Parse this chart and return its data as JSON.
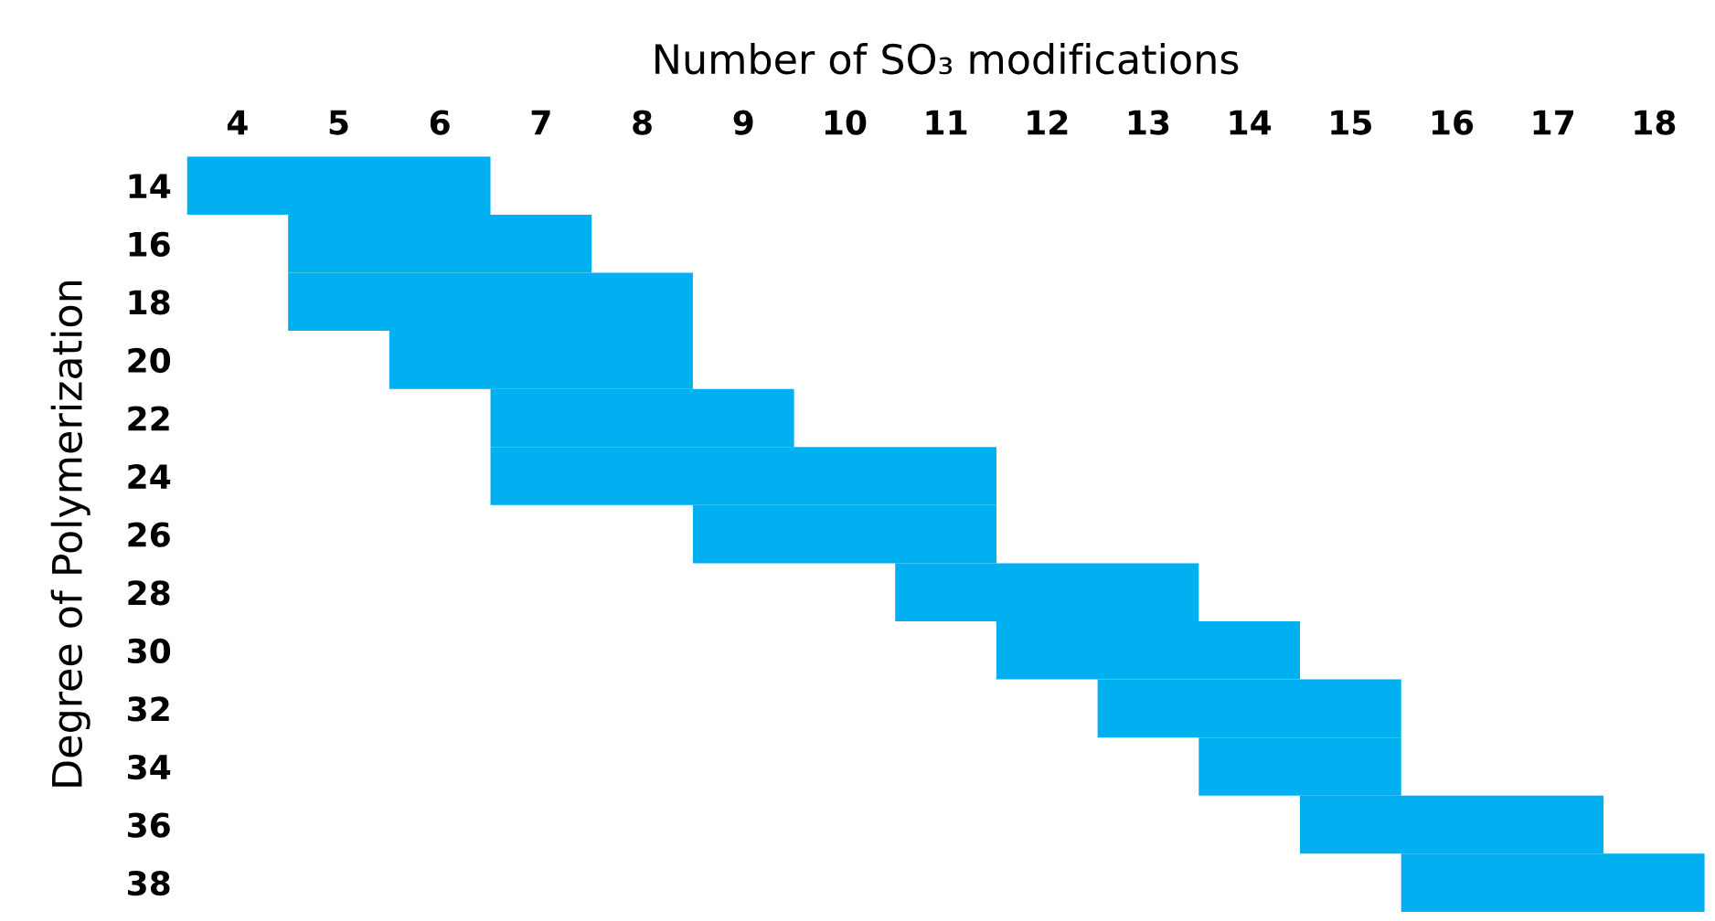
{
  "chart_data": {
    "type": "bar",
    "orientation": "horizontal",
    "xlabel": "Number of SO₃ modifications",
    "ylabel": "Degree of Polymerization",
    "color": "#00b0f0",
    "categories": [
      "14",
      "16",
      "18",
      "20",
      "22",
      "24",
      "26",
      "28",
      "30",
      "32",
      "34",
      "36",
      "38"
    ],
    "base": [
      3.5,
      4.5,
      4.5,
      5.5,
      6.5,
      6.5,
      8.5,
      10.5,
      11.5,
      12.5,
      13.5,
      14.5,
      15.5
    ],
    "values": [
      3,
      3,
      4,
      3,
      3,
      5,
      3,
      3,
      3,
      3,
      2,
      3,
      3
    ],
    "xlim": [
      3.5,
      18.5
    ],
    "xticks": [
      4,
      5,
      6,
      7,
      8,
      9,
      10,
      11,
      12,
      13,
      14,
      15,
      16,
      17,
      18
    ]
  }
}
